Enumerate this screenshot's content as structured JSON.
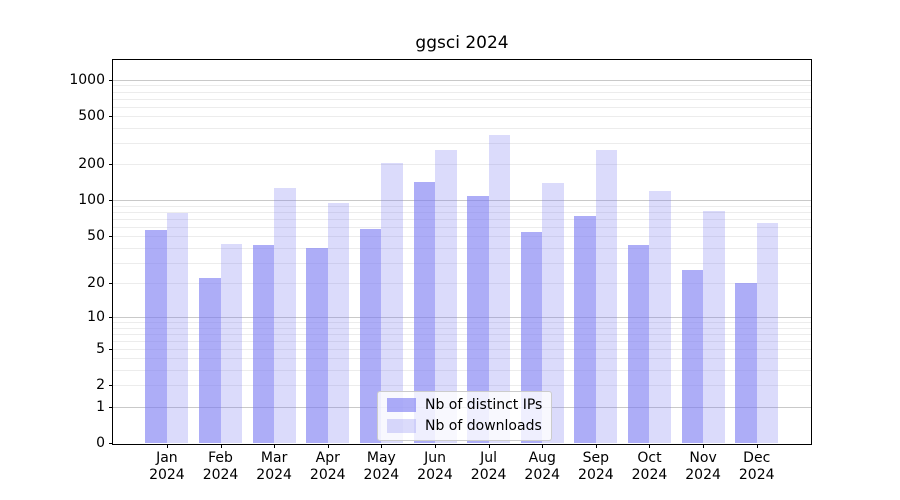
{
  "title": "ggsci 2024",
  "chart_data": {
    "type": "bar",
    "title": "ggsci 2024",
    "categories": [
      "Jan",
      "Feb",
      "Mar",
      "Apr",
      "May",
      "Jun",
      "Jul",
      "Aug",
      "Sep",
      "Oct",
      "Nov",
      "Dec"
    ],
    "x_year": "2024",
    "series": [
      {
        "name": "Nb of distinct IPs",
        "color": "rgba(122,122,242,0.62)",
        "values": [
          57,
          22,
          42,
          40,
          58,
          143,
          109,
          54,
          74,
          42,
          26,
          20
        ]
      },
      {
        "name": "Nb of downloads",
        "color": "rgba(122,122,242,0.27)",
        "values": [
          78,
          43,
          126,
          96,
          204,
          264,
          352,
          141,
          264,
          120,
          81,
          65
        ]
      }
    ],
    "yscale": "symlog",
    "yticks": [
      1000,
      500,
      200,
      100,
      50,
      20,
      10,
      5,
      2,
      1,
      0
    ],
    "ylim": [
      0,
      1400
    ],
    "grid": true,
    "legend_position": "lower center"
  },
  "colors": {
    "grid_major": "#c9c9c9",
    "grid_minor": "#ececec",
    "axis": "#000000",
    "legend_border": "#cccccc"
  }
}
